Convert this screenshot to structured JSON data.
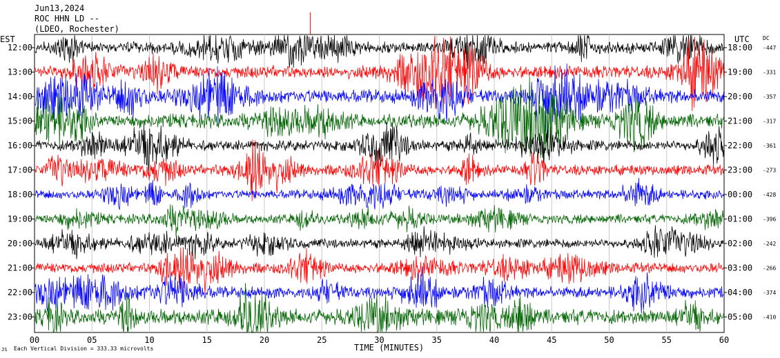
{
  "header": {
    "date": "Jun13,2024",
    "station": "ROC HHN LD --",
    "network": "(LDEO, Rochester)"
  },
  "chart_data": {
    "type": "line",
    "title": "Jun13,2024",
    "left_axis_label": "EST",
    "right_axis_label": "UTC",
    "dc_label": "DC",
    "xlabel": "TIME (MINUTES)",
    "xlim": [
      0,
      60
    ],
    "x_ticks": [
      "00",
      "05",
      "10",
      "15",
      "20",
      "25",
      "30",
      "35",
      "40",
      "45",
      "50",
      "55",
      "60"
    ],
    "grid": true,
    "footer_note": "Each Vertical Division = 333.33 microvolts",
    "series_colors": [
      "#000000",
      "#ff0000",
      "#0000ff",
      "#006400"
    ],
    "rows": [
      {
        "est": "12:00",
        "utc": "18:00",
        "dc": "-447",
        "color": "#000000",
        "amplitude": 1.0
      },
      {
        "est": "13:00",
        "utc": "19:00",
        "dc": "-331",
        "color": "#ff0000",
        "amplitude": 1.1
      },
      {
        "est": "14:00",
        "utc": "20:00",
        "dc": "-357",
        "color": "#0000ff",
        "amplitude": 1.2
      },
      {
        "est": "15:00",
        "utc": "21:00",
        "dc": "-317",
        "color": "#006400",
        "amplitude": 1.2
      },
      {
        "est": "16:00",
        "utc": "22:00",
        "dc": "-361",
        "color": "#000000",
        "amplitude": 0.9
      },
      {
        "est": "17:00",
        "utc": "23:00",
        "dc": "-273",
        "color": "#ff0000",
        "amplitude": 0.9
      },
      {
        "est": "18:00",
        "utc": "00:00",
        "dc": "-428",
        "color": "#0000ff",
        "amplitude": 0.8
      },
      {
        "est": "19:00",
        "utc": "01:00",
        "dc": "-396",
        "color": "#006400",
        "amplitude": 0.8
      },
      {
        "est": "20:00",
        "utc": "02:00",
        "dc": "-242",
        "color": "#000000",
        "amplitude": 0.8
      },
      {
        "est": "21:00",
        "utc": "03:00",
        "dc": "-266",
        "color": "#ff0000",
        "amplitude": 0.9
      },
      {
        "est": "22:00",
        "utc": "04:00",
        "dc": "-374",
        "color": "#0000ff",
        "amplitude": 1.0
      },
      {
        "est": "23:00",
        "utc": "05:00",
        "dc": "-410",
        "color": "#006400",
        "amplitude": 1.3
      }
    ]
  }
}
